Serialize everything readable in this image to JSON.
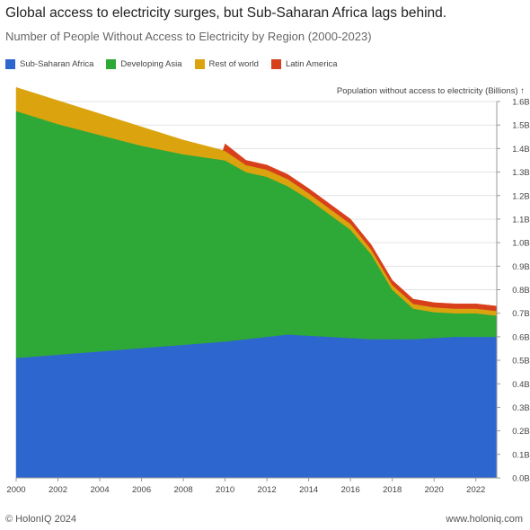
{
  "chart_data": {
    "type": "area",
    "stacked": true,
    "title": "Global access to electricity surges, but Sub-Saharan Africa lags behind.",
    "subtitle": "Number of People Without Access to Electricity by Region (2000-2023)",
    "ylabel": "Population without access to electricity (Billions) ↑",
    "ylim": [
      0,
      1.6
    ],
    "xlim": [
      2000,
      2023
    ],
    "x_ticks": [
      2000,
      2002,
      2004,
      2006,
      2008,
      2010,
      2012,
      2014,
      2016,
      2018,
      2020,
      2022
    ],
    "y_ticks": [
      "0.0B",
      "0.1B",
      "0.2B",
      "0.3B",
      "0.4B",
      "0.5B",
      "0.6B",
      "0.7B",
      "0.8B",
      "0.9B",
      "1.0B",
      "1.1B",
      "1.2B",
      "1.3B",
      "1.4B",
      "1.5B",
      "1.6B"
    ],
    "grid": true,
    "legend_position": "top-left",
    "series": [
      {
        "name": "Sub-Saharan Africa",
        "color": "#2e66cf",
        "points": [
          [
            2000,
            0.51
          ],
          [
            2010,
            0.58
          ],
          [
            2012,
            0.6
          ],
          [
            2013,
            0.61
          ],
          [
            2015,
            0.6
          ],
          [
            2017,
            0.59
          ],
          [
            2019,
            0.59
          ],
          [
            2021,
            0.6
          ],
          [
            2023,
            0.6
          ]
        ]
      },
      {
        "name": "Developing Asia",
        "color": "#2ea836",
        "points": [
          [
            2000,
            1.05
          ],
          [
            2002,
            0.98
          ],
          [
            2004,
            0.92
          ],
          [
            2006,
            0.86
          ],
          [
            2008,
            0.81
          ],
          [
            2010,
            0.77
          ],
          [
            2011,
            0.71
          ],
          [
            2012,
            0.68
          ],
          [
            2013,
            0.63
          ],
          [
            2014,
            0.58
          ],
          [
            2015,
            0.52
          ],
          [
            2016,
            0.46
          ],
          [
            2017,
            0.36
          ],
          [
            2018,
            0.21
          ],
          [
            2019,
            0.13
          ],
          [
            2020,
            0.11
          ],
          [
            2021,
            0.1
          ],
          [
            2022,
            0.1
          ],
          [
            2023,
            0.09
          ]
        ]
      },
      {
        "name": "Rest of world",
        "color": "#dba30e",
        "points": [
          [
            2000,
            0.1
          ],
          [
            2002,
            0.1
          ],
          [
            2004,
            0.09
          ],
          [
            2006,
            0.08
          ],
          [
            2008,
            0.06
          ],
          [
            2010,
            0.04
          ],
          [
            2011,
            0.03
          ],
          [
            2012,
            0.03
          ],
          [
            2013,
            0.03
          ],
          [
            2014,
            0.025
          ],
          [
            2015,
            0.025
          ],
          [
            2016,
            0.025
          ],
          [
            2017,
            0.02
          ],
          [
            2018,
            0.02
          ],
          [
            2019,
            0.02
          ],
          [
            2020,
            0.02
          ],
          [
            2021,
            0.02
          ],
          [
            2022,
            0.02
          ],
          [
            2023,
            0.02
          ]
        ]
      },
      {
        "name": "Latin America",
        "color": "#d8401b",
        "points": [
          [
            2009.9,
            0.0
          ],
          [
            2010,
            0.03
          ],
          [
            2011,
            0.02
          ],
          [
            2012,
            0.02
          ],
          [
            2013,
            0.02
          ],
          [
            2014,
            0.02
          ],
          [
            2015,
            0.02
          ],
          [
            2016,
            0.02
          ],
          [
            2017,
            0.02
          ],
          [
            2018,
            0.02
          ],
          [
            2019,
            0.02
          ],
          [
            2020,
            0.02
          ],
          [
            2021,
            0.02
          ],
          [
            2022,
            0.02
          ],
          [
            2023,
            0.02
          ]
        ]
      }
    ]
  },
  "footer": {
    "copyright": "© HolonIQ 2024",
    "website": "www.holoniq.com"
  }
}
